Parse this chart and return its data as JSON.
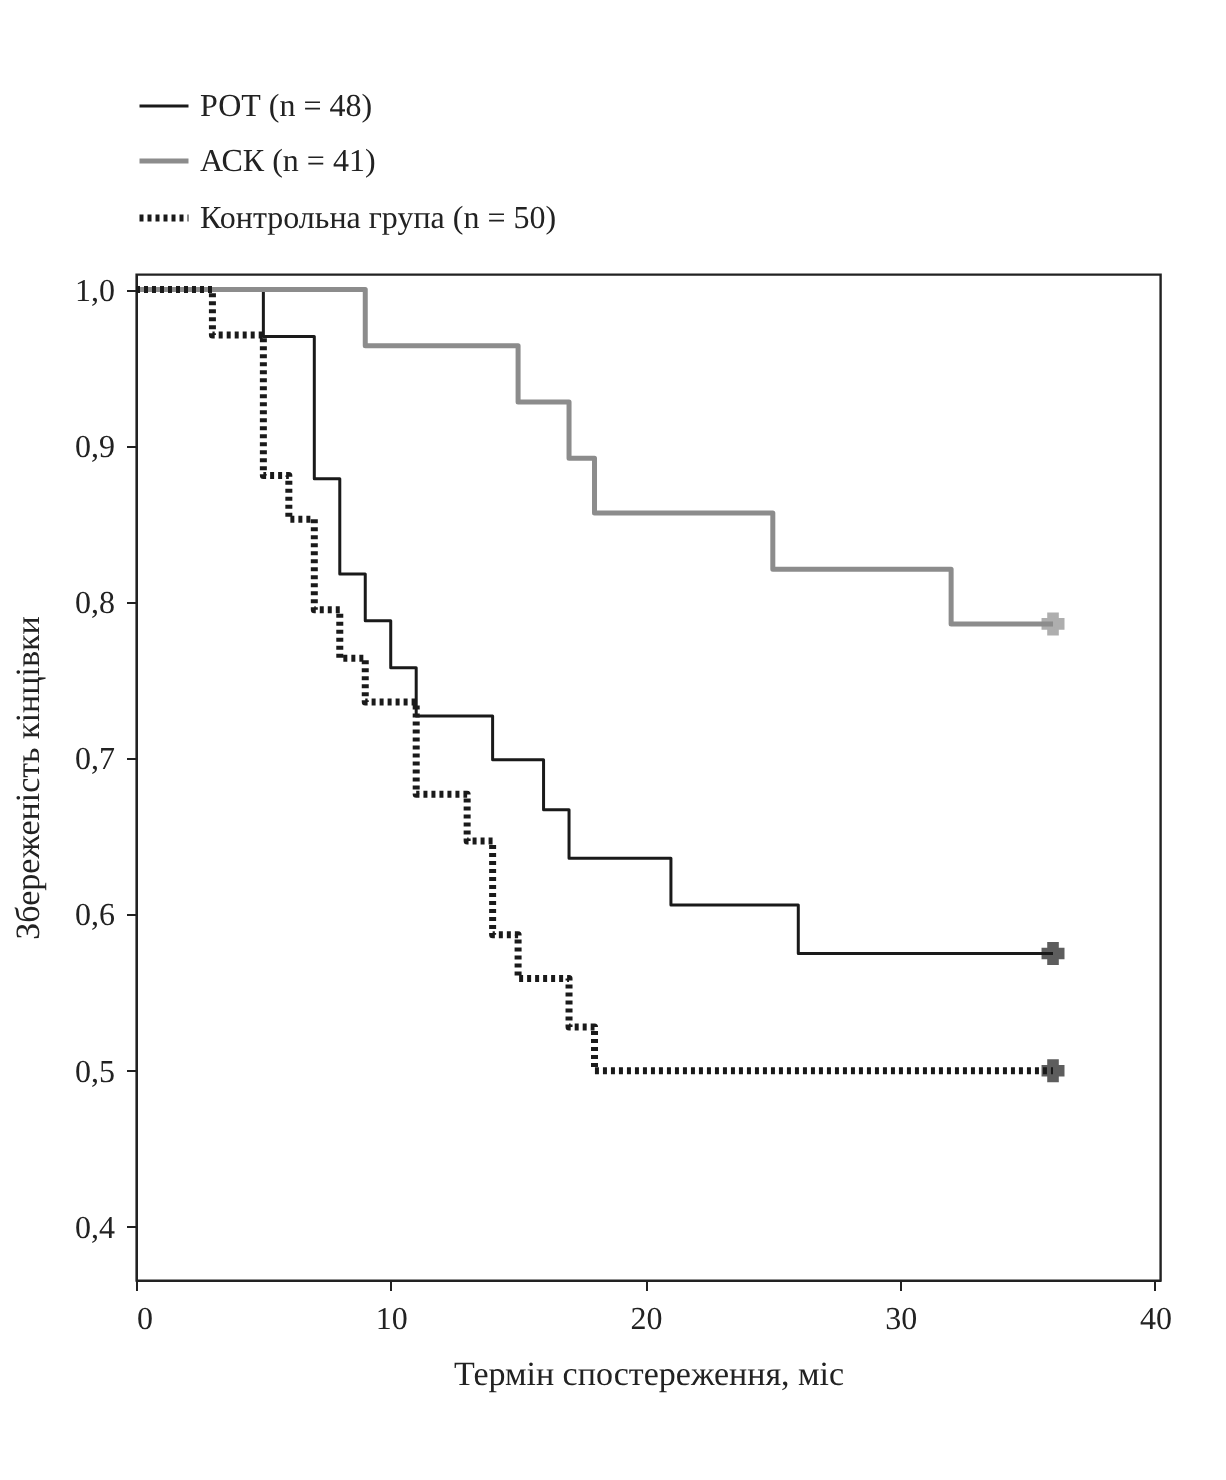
{
  "chart_data": {
    "type": "step",
    "xlabel": "Термін спостереження, міс",
    "ylabel": "Збереженість кінцівки",
    "xlim": [
      0,
      40.2
    ],
    "xticks": [
      0,
      10,
      20,
      30,
      40
    ],
    "ylim": [
      0.366,
      1.01
    ],
    "yticks": [
      {
        "value": 0.4,
        "label": "0,4"
      },
      {
        "value": 0.5,
        "label": "0,5"
      },
      {
        "value": 0.6,
        "label": "0,6"
      },
      {
        "value": 0.7,
        "label": "0,7"
      },
      {
        "value": 0.8,
        "label": "0,8"
      },
      {
        "value": 0.9,
        "label": "0,9"
      },
      {
        "value": 1.0,
        "label": "1,0"
      }
    ],
    "grid": false,
    "legend": "top left",
    "series": [
      {
        "name": "РОТ (n = 48)",
        "color": "#1a1a1a",
        "line_style": "solid",
        "x": [
          0,
          5,
          7,
          8,
          9,
          10,
          11,
          14,
          16,
          17,
          21,
          26,
          36
        ],
        "values": [
          1.0,
          0.97,
          0.879,
          0.818,
          0.788,
          0.758,
          0.727,
          0.699,
          0.667,
          0.636,
          0.606,
          0.575,
          0.575
        ]
      },
      {
        "name": "АСК (n = 41)",
        "color": "#8c8c8c",
        "line_style": "solid",
        "x": [
          0,
          9,
          15,
          17,
          18,
          25,
          32,
          36
        ],
        "values": [
          1.0,
          0.964,
          0.928,
          0.892,
          0.857,
          0.821,
          0.786,
          0.786
        ]
      },
      {
        "name": "Контрольна група (n = 50)",
        "color": "#1a1a1a",
        "line_style": "dotted",
        "x": [
          0,
          3,
          5,
          6,
          7,
          8,
          9,
          11,
          13,
          14,
          15,
          17,
          18,
          36
        ],
        "values": [
          1.0,
          0.971,
          0.881,
          0.853,
          0.795,
          0.764,
          0.736,
          0.677,
          0.647,
          0.587,
          0.559,
          0.528,
          0.5,
          0.5
        ]
      },
      {
        "type": "scatter",
        "marker": "cross",
        "x": [
          36,
          36,
          36
        ],
        "values": [
          0.575,
          0.786,
          0.5
        ],
        "colors": [
          "#1a1a1a",
          "#8c8c8c",
          "#1a1a1a"
        ]
      }
    ]
  }
}
